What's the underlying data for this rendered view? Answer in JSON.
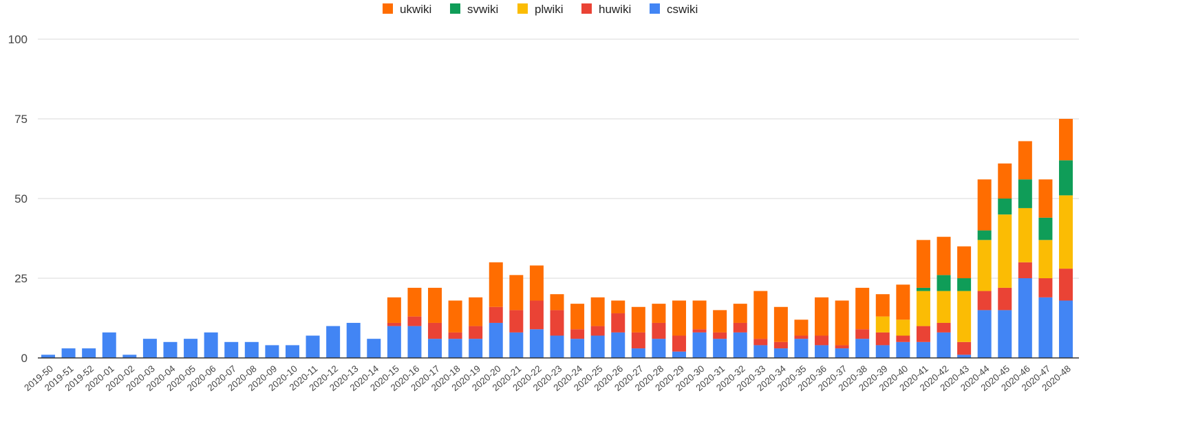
{
  "chart_data": {
    "type": "bar",
    "stacked": true,
    "title": "",
    "xlabel": "",
    "ylabel": "",
    "ylim": [
      0,
      100
    ],
    "yticks": [
      0,
      25,
      50,
      75,
      100
    ],
    "grid": true,
    "legend_position": "top-center",
    "categories": [
      "2019-50",
      "2019-51",
      "2019-52",
      "2020-01",
      "2020-02",
      "2020-03",
      "2020-04",
      "2020-05",
      "2020-06",
      "2020-07",
      "2020-08",
      "2020-09",
      "2020-10",
      "2020-11",
      "2020-12",
      "2020-13",
      "2020-14",
      "2020-15",
      "2020-16",
      "2020-17",
      "2020-18",
      "2020-19",
      "2020-20",
      "2020-21",
      "2020-22",
      "2020-23",
      "2020-24",
      "2020-25",
      "2020-26",
      "2020-27",
      "2020-28",
      "2020-29",
      "2020-30",
      "2020-31",
      "2020-32",
      "2020-33",
      "2020-34",
      "2020-35",
      "2020-36",
      "2020-37",
      "2020-38",
      "2020-39",
      "2020-40",
      "2020-41",
      "2020-42",
      "2020-43",
      "2020-44",
      "2020-45",
      "2020-46",
      "2020-47",
      "2020-48"
    ],
    "legend": [
      "ukwiki",
      "svwiki",
      "plwiki",
      "huwiki",
      "cswiki"
    ],
    "series": [
      {
        "name": "cswiki",
        "color": "#4285f4",
        "values": [
          1,
          3,
          3,
          8,
          1,
          6,
          5,
          6,
          8,
          5,
          5,
          4,
          4,
          7,
          10,
          11,
          6,
          10,
          10,
          6,
          6,
          6,
          11,
          8,
          9,
          7,
          6,
          7,
          8,
          3,
          6,
          2,
          8,
          6,
          8,
          4,
          3,
          6,
          4,
          3,
          6,
          4,
          5,
          5,
          8,
          1,
          15,
          15,
          25,
          19,
          18
        ]
      },
      {
        "name": "huwiki",
        "color": "#ea4335",
        "values": [
          0,
          0,
          0,
          0,
          0,
          0,
          0,
          0,
          0,
          0,
          0,
          0,
          0,
          0,
          0,
          0,
          0,
          1,
          3,
          5,
          2,
          4,
          5,
          7,
          9,
          8,
          3,
          3,
          6,
          5,
          5,
          5,
          1,
          2,
          3,
          2,
          2,
          1,
          3,
          1,
          3,
          4,
          2,
          5,
          3,
          4,
          6,
          7,
          5,
          6,
          10
        ]
      },
      {
        "name": "plwiki",
        "color": "#fbbc04",
        "values": [
          0,
          0,
          0,
          0,
          0,
          0,
          0,
          0,
          0,
          0,
          0,
          0,
          0,
          0,
          0,
          0,
          0,
          0,
          0,
          0,
          0,
          0,
          0,
          0,
          0,
          0,
          0,
          0,
          0,
          0,
          0,
          0,
          0,
          0,
          0,
          0,
          0,
          0,
          0,
          0,
          0,
          5,
          5,
          11,
          10,
          16,
          16,
          23,
          17,
          12,
          23
        ]
      },
      {
        "name": "svwiki",
        "color": "#0f9d58",
        "values": [
          0,
          0,
          0,
          0,
          0,
          0,
          0,
          0,
          0,
          0,
          0,
          0,
          0,
          0,
          0,
          0,
          0,
          0,
          0,
          0,
          0,
          0,
          0,
          0,
          0,
          0,
          0,
          0,
          0,
          0,
          0,
          0,
          0,
          0,
          0,
          0,
          0,
          0,
          0,
          0,
          0,
          0,
          0,
          1,
          5,
          4,
          3,
          5,
          9,
          7,
          11
        ]
      },
      {
        "name": "ukwiki",
        "color": "#ff6d01",
        "values": [
          0,
          0,
          0,
          0,
          0,
          0,
          0,
          0,
          0,
          0,
          0,
          0,
          0,
          0,
          0,
          0,
          0,
          8,
          9,
          11,
          10,
          9,
          14,
          11,
          11,
          5,
          8,
          9,
          4,
          8,
          6,
          11,
          9,
          7,
          6,
          15,
          11,
          5,
          12,
          14,
          13,
          7,
          11,
          15,
          12,
          10,
          16,
          11,
          12,
          12,
          13
        ]
      }
    ]
  }
}
